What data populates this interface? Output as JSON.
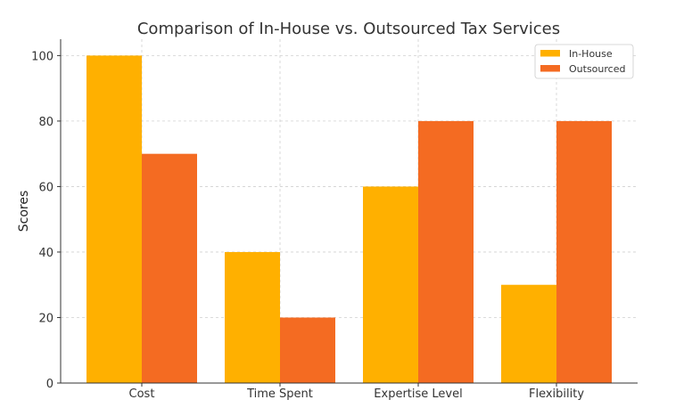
{
  "chart_data": {
    "type": "bar",
    "title": "Comparison of In-House vs. Outsourced Tax Services",
    "xlabel": "",
    "ylabel": "Scores",
    "categories": [
      "Cost",
      "Time Spent",
      "Expertise Level",
      "Flexibility"
    ],
    "series": [
      {
        "name": "In-House",
        "values": [
          100,
          40,
          60,
          30
        ],
        "color": "#FFB000"
      },
      {
        "name": "Outsourced",
        "values": [
          70,
          20,
          80,
          80
        ],
        "color": "#F46B22"
      }
    ],
    "ylim": [
      0,
      105
    ],
    "yticks": [
      0,
      20,
      40,
      60,
      80,
      100
    ],
    "grid": true,
    "legend": "top-right"
  }
}
